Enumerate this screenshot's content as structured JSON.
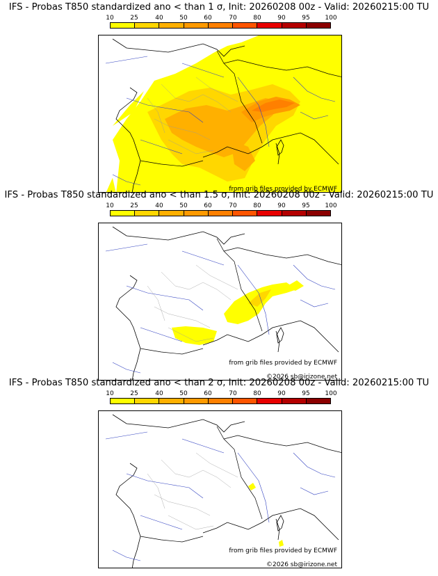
{
  "legend": {
    "labels": [
      "10",
      "25",
      "40",
      "50",
      "60",
      "70",
      "80",
      "90",
      "95",
      "100"
    ],
    "colors": [
      "#ffff00",
      "#ffd700",
      "#ffb000",
      "#ff9a00",
      "#ff8000",
      "#ff5500",
      "#e80000",
      "#b40000",
      "#8b0000",
      "#4a0000"
    ]
  },
  "credits": {
    "source": "from grib files provided by ECMWF",
    "copyright": "©2026 sb@irizone.net"
  },
  "panels": [
    {
      "title": "IFS - Probas T850  standardized ano < than 1 σ, Init: 20260208 00z - Valid: 20260215:00 TU"
    },
    {
      "title": "IFS - Probas T850  standardized ano < than 1.5 σ, Init: 20260208 00z - Valid: 20260215:00 TU"
    },
    {
      "title": "IFS - Probas T850  standardized ano < than 2 σ, Init: 20260208 00z - Valid: 20260215:00 TU"
    }
  ]
}
